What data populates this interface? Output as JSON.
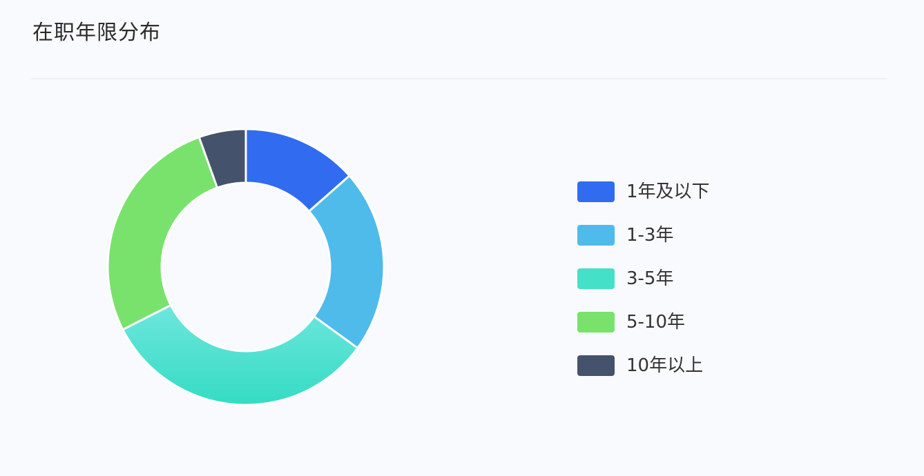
{
  "card": {
    "title": "在职年限分布"
  },
  "chart_data": {
    "type": "pie",
    "style": "donut",
    "legend_position": "right",
    "categories": [
      "1年及以下",
      "1-3年",
      "3-5年",
      "5-10年",
      "10年以上"
    ],
    "values": [
      13.5,
      21.5,
      32.5,
      27.0,
      5.5
    ],
    "colors": [
      "#316cf0",
      "#4fbbea",
      "#45e0c8",
      "#79e26c",
      "#45526b"
    ]
  }
}
